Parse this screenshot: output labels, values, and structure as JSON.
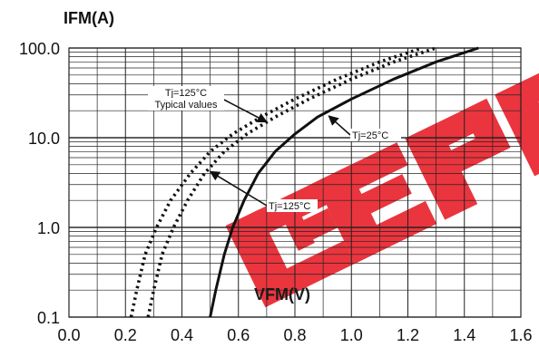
{
  "chart_data": {
    "type": "line",
    "ylabel": "IFM(A)",
    "xlabel": "VFM(V)",
    "yscale": "log",
    "xlim": [
      0.0,
      1.6
    ],
    "ylim": [
      0.1,
      100.0
    ],
    "x_ticks": [
      "0.0",
      "0.2",
      "0.4",
      "0.6",
      "0.8",
      "1.0",
      "1.2",
      "1.4",
      "1.6"
    ],
    "y_ticks": [
      "0.1",
      "1.0",
      "10.0",
      "100.0"
    ],
    "grid": true,
    "series": [
      {
        "name": "Tj=25°C",
        "style": "solid",
        "x": [
          0.5,
          0.52,
          0.55,
          0.58,
          0.62,
          0.67,
          0.73,
          0.8,
          0.88,
          1.0,
          1.15,
          1.3,
          1.45
        ],
        "y": [
          0.1,
          0.2,
          0.5,
          1.0,
          2.0,
          4.0,
          7.0,
          11.0,
          17.0,
          27.0,
          45.0,
          70.0,
          100.0
        ]
      },
      {
        "name": "Tj=125°C",
        "style": "dotted",
        "x": [
          0.28,
          0.3,
          0.33,
          0.37,
          0.42,
          0.48,
          0.55,
          0.63,
          0.73,
          0.85,
          1.0,
          1.15,
          1.3
        ],
        "y": [
          0.1,
          0.2,
          0.5,
          1.0,
          2.0,
          4.0,
          7.0,
          11.0,
          17.0,
          27.0,
          45.0,
          70.0,
          100.0
        ]
      },
      {
        "name": "Tj=125°C Typical values",
        "style": "dotted",
        "x": [
          0.22,
          0.24,
          0.27,
          0.31,
          0.36,
          0.43,
          0.5,
          0.58,
          0.68,
          0.8,
          0.95,
          1.1,
          1.25
        ],
        "y": [
          0.1,
          0.2,
          0.5,
          1.0,
          2.0,
          4.0,
          7.0,
          11.0,
          17.0,
          27.0,
          45.0,
          70.0,
          100.0
        ]
      }
    ],
    "annotations": [
      {
        "text": "Tj=125°C",
        "series": 1
      },
      {
        "text": "Tj=25°C",
        "series": 0
      },
      {
        "text": "Tj=125°C",
        "series": 2,
        "line": 1
      },
      {
        "text": "Typical values",
        "series": 2,
        "line": 2
      }
    ],
    "watermark_text": "GEPM",
    "colors": {
      "line": "#111111",
      "grid": "#222222",
      "watermark": "#e8202a"
    }
  }
}
